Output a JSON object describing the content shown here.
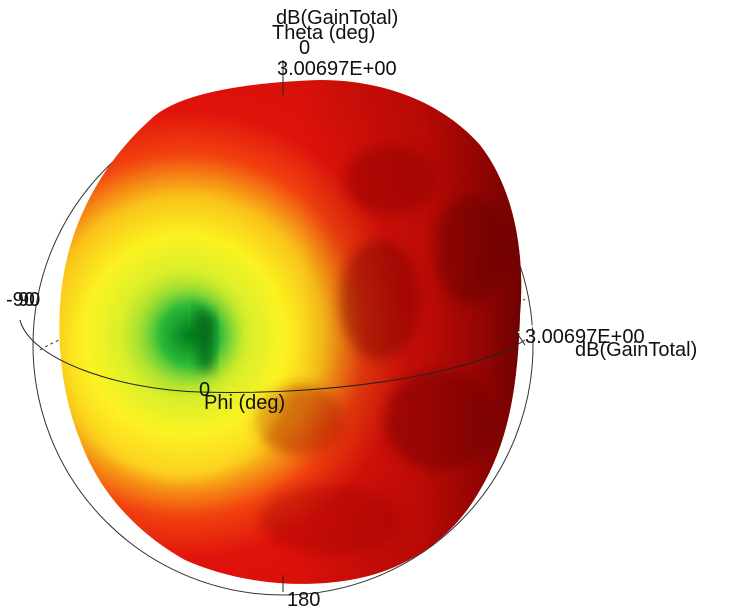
{
  "plot": {
    "quantity_label": "dB(GainTotal)",
    "theta_axis_label": "Theta (deg)",
    "phi_axis_label": "Phi (deg)",
    "theta_top_tick": "0",
    "theta_bottom_tick": "180",
    "phi_left_tick": "-90",
    "phi_left_tick_overlap": "90",
    "phi_origin_tick": "0",
    "max_value_top": "3.00697E+00",
    "right_label_value": "3.00697E+00",
    "right_label_overlap_value": "+00",
    "right_label_quantity": "dB(GainTotal)"
  },
  "colors": {
    "high_gain": "#e2120a",
    "high_gain_dark": "#6e0000",
    "mid_gain": "#f6f21a",
    "low_gain": "#18a83a",
    "background": "#ffffff",
    "guide_lines": "#222222"
  }
}
